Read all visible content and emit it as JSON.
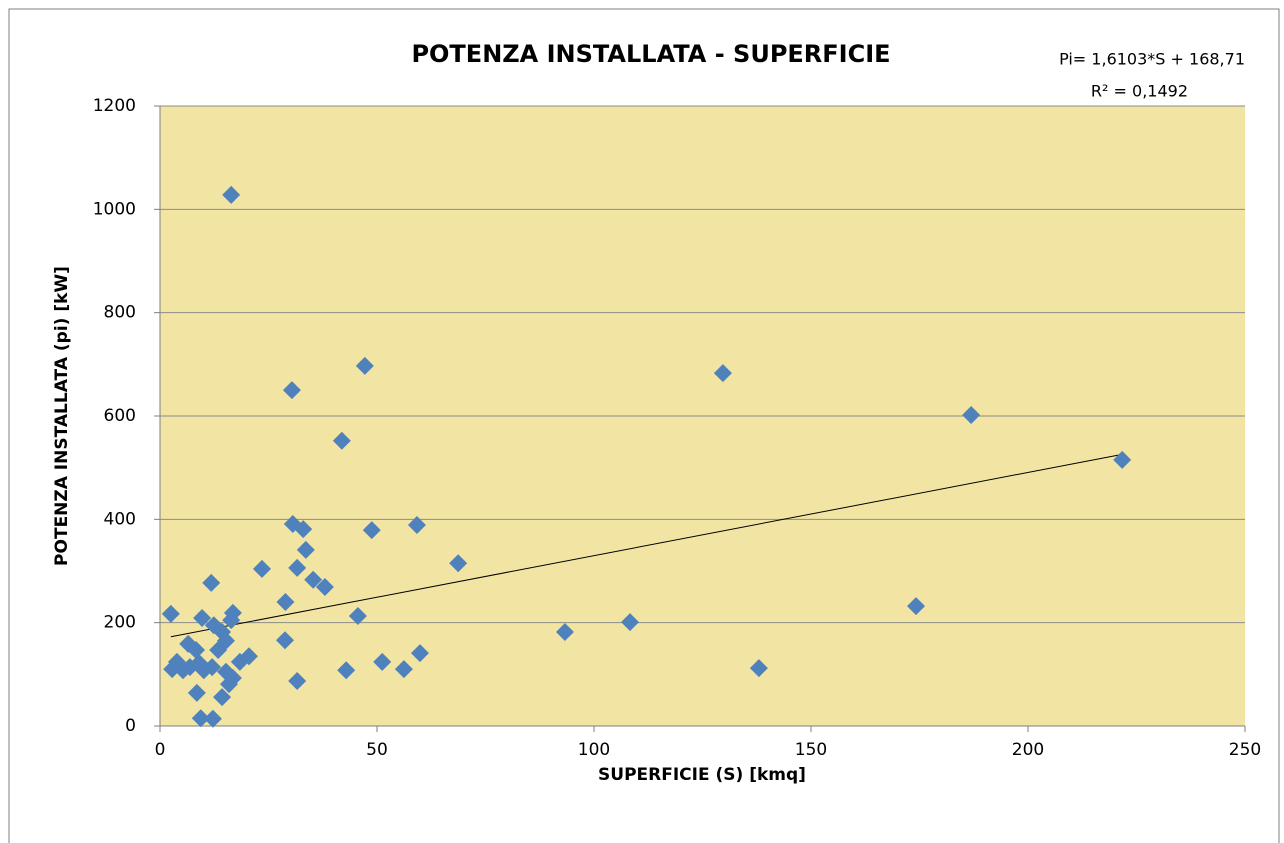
{
  "chart_data": {
    "type": "scatter",
    "title": "POTENZA INSTALLATA - SUPERFICIE",
    "x_label": "SUPERFICIE (S) [kmq]",
    "y_label": "POTENZA INSTALLATA (pi) [kW]",
    "annotations": [
      "Pi= 1,6103*S + 168,71",
      "R² = 0,1492"
    ],
    "trendline": {
      "slope": 1.6103,
      "intercept": 168.71
    },
    "xlim": [
      0,
      250
    ],
    "xticks": [
      0,
      50,
      100,
      150,
      200,
      250
    ],
    "ylim": [
      0,
      1200
    ],
    "yticks": [
      0,
      200,
      400,
      600,
      800,
      1000,
      1200
    ],
    "grid": true,
    "series": [
      {
        "color": "#4f81bd",
        "x": [
          16.4,
          47.2,
          30.4,
          129.7,
          186.9,
          41.9,
          221.7,
          30.6,
          33.0,
          48.8,
          59.2,
          33.6,
          68.7,
          23.5,
          31.6,
          35.3,
          38.0,
          11.8,
          28.9,
          174.2,
          45.6,
          16.8,
          16.4,
          9.7,
          2.5,
          93.3,
          108.3,
          12.4,
          14.3,
          15.2,
          28.8,
          13.4,
          6.5,
          8.3,
          59.9,
          20.5,
          18.4,
          51.2,
          9.0,
          3.9,
          2.8,
          5.3,
          42.9,
          56.2,
          138.0,
          15.2,
          10.1,
          12.0,
          6.9,
          16.8,
          15.9,
          31.6,
          8.5,
          14.3,
          9.4,
          12.2
        ],
        "values": [
          1028,
          697,
          650,
          683,
          602,
          552,
          515,
          391,
          381,
          379,
          389,
          341,
          315,
          304,
          306,
          283,
          269,
          277,
          240,
          232,
          213,
          219,
          205,
          209,
          217,
          182,
          201,
          195,
          182,
          165,
          166,
          147,
          159,
          147,
          141,
          135,
          124,
          124,
          122,
          124,
          110,
          108,
          108,
          110,
          112,
          105,
          108,
          114,
          114,
          93,
          81,
          87,
          64,
          56,
          15,
          14
        ]
      }
    ]
  }
}
